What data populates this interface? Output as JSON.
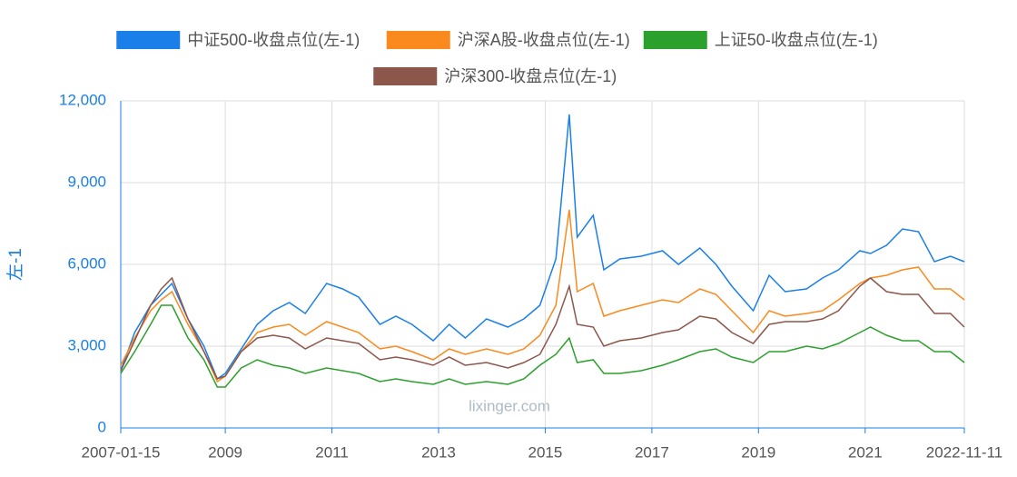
{
  "chart_data": {
    "type": "line",
    "y_label": "左-1",
    "watermark": "lixinger.com",
    "x": [
      2007.04,
      2007.3,
      2007.6,
      2007.8,
      2008.0,
      2008.3,
      2008.6,
      2008.85,
      2009.0,
      2009.3,
      2009.6,
      2009.9,
      2010.2,
      2010.5,
      2010.9,
      2011.2,
      2011.5,
      2011.9,
      2012.2,
      2012.5,
      2012.9,
      2013.2,
      2013.5,
      2013.9,
      2014.3,
      2014.6,
      2014.9,
      2015.2,
      2015.45,
      2015.6,
      2015.9,
      2016.1,
      2016.4,
      2016.8,
      2017.2,
      2017.5,
      2017.9,
      2018.2,
      2018.5,
      2018.9,
      2019.2,
      2019.5,
      2019.9,
      2020.2,
      2020.5,
      2020.9,
      2021.1,
      2021.4,
      2021.7,
      2022.0,
      2022.3,
      2022.6,
      2022.86
    ],
    "series": [
      {
        "name": "中证500-收盘点位(左-1)",
        "color": "#1a7fe8",
        "values": [
          2100,
          3500,
          4500,
          4900,
          5300,
          4000,
          3000,
          1800,
          2000,
          2900,
          3800,
          4300,
          4600,
          4200,
          5300,
          5100,
          4800,
          3800,
          4100,
          3800,
          3200,
          3800,
          3300,
          4000,
          3700,
          4000,
          4500,
          6200,
          11500,
          7000,
          7800,
          5800,
          6200,
          6300,
          6500,
          6000,
          6600,
          6000,
          5200,
          4300,
          5600,
          5000,
          5100,
          5500,
          5800,
          6500,
          6400,
          6700,
          7300,
          7200,
          6100,
          6300,
          6100
        ]
      },
      {
        "name": "沪深A股-收盘点位(左-1)",
        "color": "#fb8a1e",
        "values": [
          2300,
          3300,
          4300,
          4700,
          5000,
          3800,
          2800,
          1700,
          1900,
          2800,
          3500,
          3700,
          3800,
          3400,
          3900,
          3700,
          3500,
          2900,
          3000,
          2800,
          2500,
          2900,
          2700,
          2900,
          2700,
          2900,
          3400,
          4500,
          8000,
          5000,
          5300,
          4100,
          4300,
          4500,
          4700,
          4600,
          5100,
          4900,
          4300,
          3500,
          4300,
          4100,
          4200,
          4300,
          4700,
          5300,
          5500,
          5600,
          5800,
          5900,
          5100,
          5100,
          4700
        ]
      },
      {
        "name": "上证50-收盘点位(左-1)",
        "color": "#2ca02c",
        "values": [
          2000,
          2800,
          3800,
          4500,
          4500,
          3300,
          2500,
          1500,
          1500,
          2200,
          2500,
          2300,
          2200,
          2000,
          2200,
          2100,
          2000,
          1700,
          1800,
          1700,
          1600,
          1800,
          1600,
          1700,
          1600,
          1800,
          2300,
          2700,
          3300,
          2400,
          2500,
          2000,
          2000,
          2100,
          2300,
          2500,
          2800,
          2900,
          2600,
          2400,
          2800,
          2800,
          3000,
          2900,
          3100,
          3500,
          3700,
          3400,
          3200,
          3200,
          2800,
          2800,
          2400
        ]
      },
      {
        "name": "沪深300-收盘点位(左-1)",
        "color": "#8c564b",
        "values": [
          2100,
          3200,
          4500,
          5100,
          5500,
          4000,
          2800,
          1800,
          1900,
          2800,
          3300,
          3400,
          3300,
          2900,
          3300,
          3200,
          3100,
          2500,
          2600,
          2500,
          2300,
          2600,
          2300,
          2400,
          2200,
          2400,
          2700,
          3800,
          5200,
          3800,
          3700,
          3000,
          3200,
          3300,
          3500,
          3600,
          4100,
          4000,
          3500,
          3100,
          3800,
          3900,
          3900,
          4000,
          4300,
          5200,
          5500,
          5000,
          4900,
          4900,
          4200,
          4200,
          3700
        ]
      }
    ],
    "xlim": [
      2007.04,
      2022.86
    ],
    "xticks": [
      {
        "value": 2007.04,
        "label": "2007-01-15"
      },
      2009,
      2011,
      2013,
      2015,
      2017,
      2019,
      2021,
      {
        "value": 2022.86,
        "label": "2022-11-11"
      }
    ],
    "ylim": [
      0,
      12000
    ],
    "yticks": [
      0,
      {
        "value": 3000,
        "label": "3,000"
      },
      {
        "value": 6000,
        "label": "6,000"
      },
      {
        "value": 9000,
        "label": "9,000"
      },
      {
        "value": 12000,
        "label": "12,000"
      }
    ],
    "grid": true
  }
}
